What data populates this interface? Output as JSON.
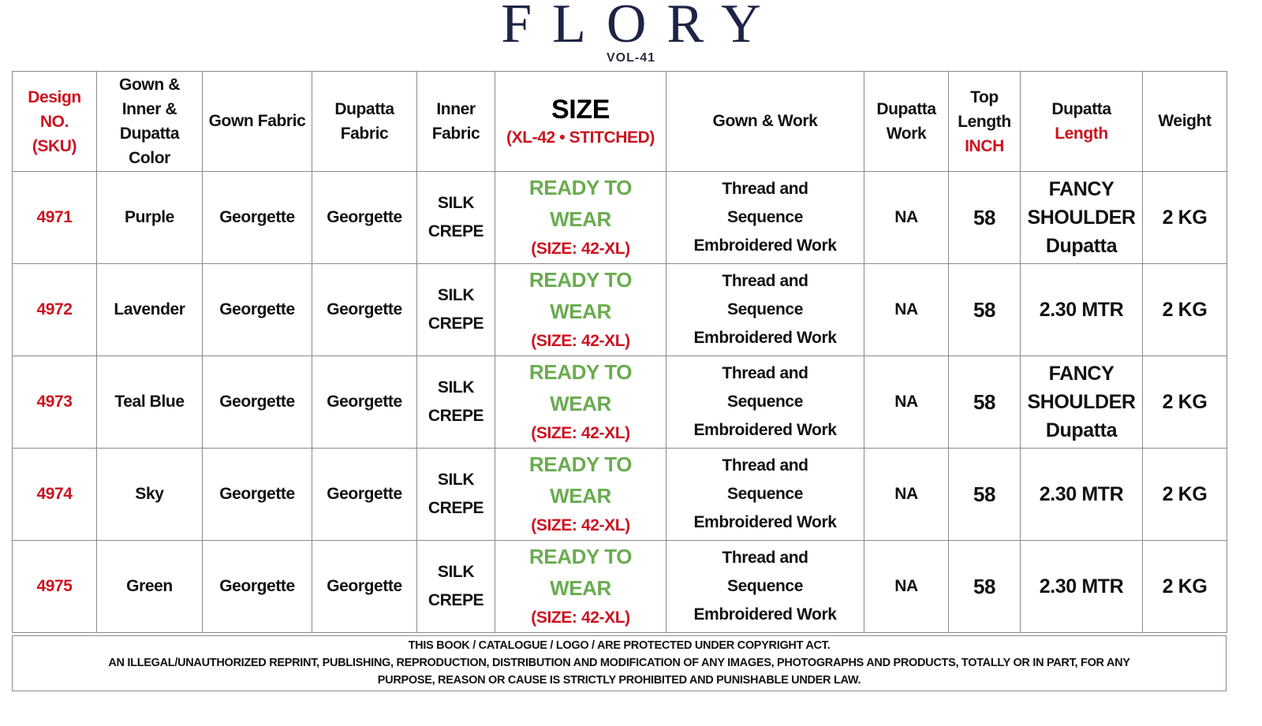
{
  "brand": {
    "logo_text": "FLORY",
    "volume": "VOL-41"
  },
  "colors": {
    "accent_red": "#cc1420",
    "ready_green": "#6aac50",
    "logo_navy": "#1e2445"
  },
  "headers": {
    "design": [
      "Design",
      "NO.",
      "(SKU)"
    ],
    "color": [
      "Gown &",
      "Inner &",
      "Dupatta",
      "Color"
    ],
    "gown_fabric": "Gown Fabric",
    "dupatta_fabric": [
      "Dupatta",
      "Fabric"
    ],
    "inner_fabric": [
      "Inner",
      "Fabric"
    ],
    "size_title": "SIZE",
    "size_sub": "(XL-42 • STITCHED)",
    "gown_work": "Gown & Work",
    "dupatta_work": [
      "Dupatta",
      "Work"
    ],
    "top_length": [
      "Top",
      "Length",
      "INCH"
    ],
    "dupatta_length": [
      "Dupatta",
      "Length"
    ],
    "weight": "Weight"
  },
  "rows": [
    {
      "design": "4971",
      "color": "Purple",
      "gown_fabric": "Georgette",
      "dupatta_fabric": "Georgette",
      "inner_fabric": [
        "SILK",
        "CREPE"
      ],
      "size": [
        "READY TO",
        "WEAR",
        "(SIZE: 42-XL)"
      ],
      "work": [
        "Thread and",
        "Sequence",
        "Embroidered Work"
      ],
      "dupatta_work": "NA",
      "top_length": "58",
      "dupatta_length": [
        "FANCY",
        "SHOULDER",
        "Dupatta"
      ],
      "weight": "2 KG"
    },
    {
      "design": "4972",
      "color": "Lavender",
      "gown_fabric": "Georgette",
      "dupatta_fabric": "Georgette",
      "inner_fabric": [
        "SILK",
        "CREPE"
      ],
      "size": [
        "READY TO",
        "WEAR",
        "(SIZE: 42-XL)"
      ],
      "work": [
        "Thread and",
        "Sequence",
        "Embroidered Work"
      ],
      "dupatta_work": "NA",
      "top_length": "58",
      "dupatta_length": [
        "2.30 MTR"
      ],
      "weight": "2 KG"
    },
    {
      "design": "4973",
      "color": "Teal Blue",
      "gown_fabric": "Georgette",
      "dupatta_fabric": "Georgette",
      "inner_fabric": [
        "SILK",
        "CREPE"
      ],
      "size": [
        "READY TO",
        "WEAR",
        "(SIZE: 42-XL)"
      ],
      "work": [
        "Thread and",
        "Sequence",
        "Embroidered Work"
      ],
      "dupatta_work": "NA",
      "top_length": "58",
      "dupatta_length": [
        "FANCY",
        "SHOULDER",
        "Dupatta"
      ],
      "weight": "2 KG"
    },
    {
      "design": "4974",
      "color": "Sky",
      "gown_fabric": "Georgette",
      "dupatta_fabric": "Georgette",
      "inner_fabric": [
        "SILK",
        "CREPE"
      ],
      "size": [
        "READY TO",
        "WEAR",
        "(SIZE: 42-XL)"
      ],
      "work": [
        "Thread and",
        "Sequence",
        "Embroidered Work"
      ],
      "dupatta_work": "NA",
      "top_length": "58",
      "dupatta_length": [
        "2.30 MTR"
      ],
      "weight": "2 KG"
    },
    {
      "design": "4975",
      "color": "Green",
      "gown_fabric": "Georgette",
      "dupatta_fabric": "Georgette",
      "inner_fabric": [
        "SILK",
        "CREPE"
      ],
      "size": [
        "READY TO",
        "WEAR",
        "(SIZE: 42-XL)"
      ],
      "work": [
        "Thread and",
        "Sequence",
        "Embroidered Work"
      ],
      "dupatta_work": "NA",
      "top_length": "58",
      "dupatta_length": [
        "2.30 MTR"
      ],
      "weight": "2 KG"
    }
  ],
  "footer": {
    "line1": "THIS BOOK / CATALOGUE  / LOGO / ARE  PROTECTED UNDER COPYRIGHT ACT.",
    "line2": "AN ILLEGAL/UNAUTHORIZED REPRINT, PUBLISHING, REPRODUCTION, DISTRIBUTION AND MODIFICATION OF ANY IMAGES, PHOTOGRAPHS AND PRODUCTS,    TOTALLY OR IN PART, FOR ANY",
    "line3": "PURPOSE, REASON OR CAUSE IS STRICTLY PROHIBITED AND PUNISHABLE UNDER LAW."
  }
}
